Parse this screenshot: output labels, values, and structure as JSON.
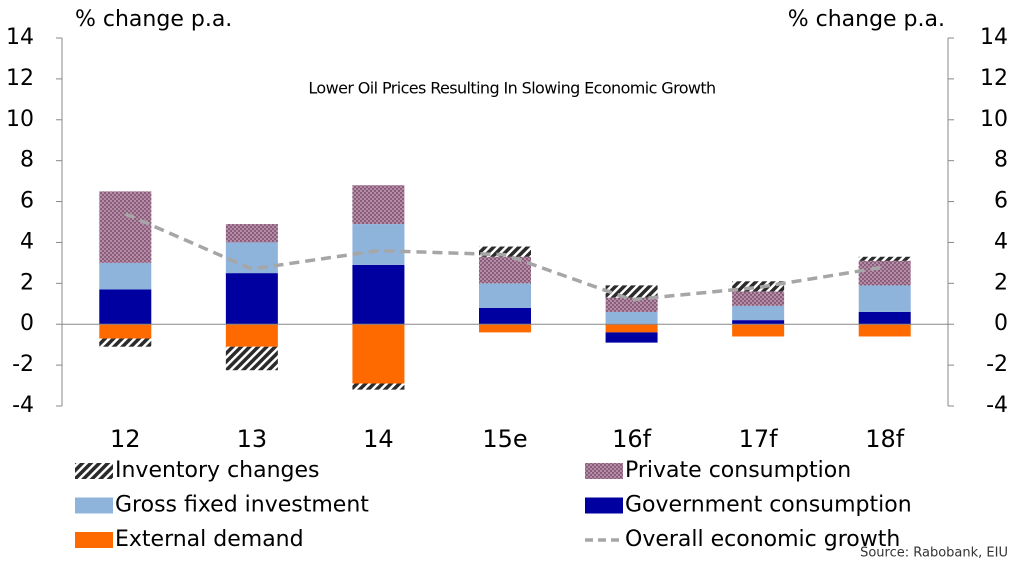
{
  "chart_data": {
    "type": "bar",
    "title": "Lower Oil Prices Resulting In Slowing Economic Growth",
    "ylabel": "% change p.a.",
    "y2label": "% change p.a.",
    "source": "Source: Rabobank, EIU",
    "categories": [
      "12",
      "13",
      "14",
      "15e",
      "16f",
      "17f",
      "18f"
    ],
    "ylim": [
      -4,
      14
    ],
    "yticks": [
      -4,
      -2,
      0,
      2,
      4,
      6,
      8,
      10,
      12,
      14
    ],
    "y2lim": [
      -4,
      14
    ],
    "y2ticks": [
      -4,
      -2,
      0,
      2,
      4,
      6,
      8,
      10,
      12,
      14
    ],
    "stacked": true,
    "series": [
      {
        "name": "Inventory changes",
        "color": "#2b2b2b",
        "values": [
          -0.4,
          -1.15,
          -0.3,
          0.5,
          0.6,
          0.5,
          0.2
        ]
      },
      {
        "name": "Private consumption",
        "color": "#b88aa8",
        "values": [
          3.5,
          0.9,
          1.9,
          1.3,
          0.7,
          0.7,
          1.2
        ]
      },
      {
        "name": "Gross fixed investment",
        "color": "#8fb4dc",
        "values": [
          1.3,
          1.5,
          2.0,
          1.2,
          0.6,
          0.7,
          1.3
        ]
      },
      {
        "name": "Government consumption",
        "color": "#0000a0",
        "values": [
          1.7,
          2.5,
          2.9,
          0.8,
          -0.5,
          0.2,
          0.6
        ]
      },
      {
        "name": "External demand",
        "color": "#ff6a00",
        "values": [
          -0.7,
          -1.1,
          -2.9,
          -0.4,
          -0.4,
          -0.6,
          -0.6
        ]
      },
      {
        "name": "Overall economic growth",
        "color": "#a6a6a6",
        "type": "line",
        "values": [
          5.4,
          2.7,
          3.6,
          3.4,
          1.2,
          1.8,
          2.8
        ]
      }
    ]
  }
}
